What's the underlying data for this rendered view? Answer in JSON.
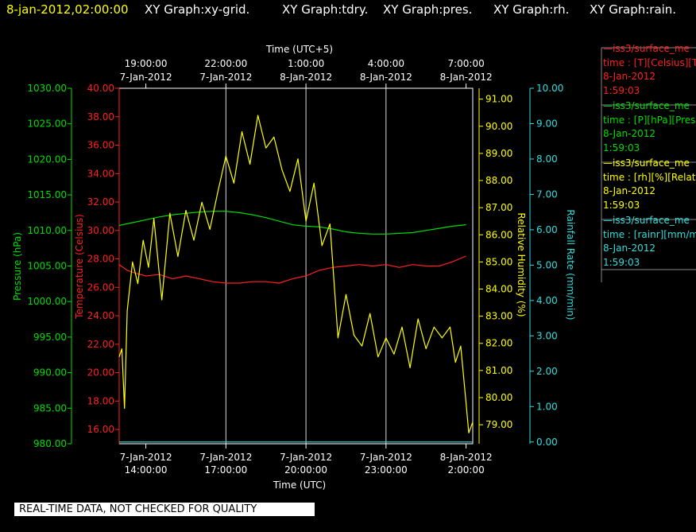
{
  "header": {
    "timestamp": "8-jan-2012,02:00:00",
    "graphs": [
      "XY Graph:xy-grid.",
      "XY Graph:tdry.",
      "XY Graph:pres.",
      "XY Graph:rh.",
      "XY Graph:rain."
    ]
  },
  "colors": {
    "pressure": "#00dd00",
    "temperature": "#ff2020",
    "humidity": "#ffff00",
    "rain": "#33dddd",
    "grid": "#ffffff",
    "header_timestamp": "#ffff00"
  },
  "legend": [
    {
      "name": "iss3/surface_me",
      "units": "time : [T][Celsius][T",
      "date": "8-Jan-2012",
      "time": "1:59:03",
      "color": "#ff2020"
    },
    {
      "name": "iss3/surface_me",
      "units": "time : [P][hPa][Pres",
      "date": "8-Jan-2012",
      "time": "1:59:03",
      "color": "#00dd00"
    },
    {
      "name": "iss3/surface_me",
      "units": "time : [rh][%][Relati",
      "date": "8-Jan-2012",
      "time": "1:59:03",
      "color": "#ffff00"
    },
    {
      "name": "iss3/surface_me",
      "units": "time : [rainr][mm/mi",
      "date": "8-Jan-2012",
      "time": "1:59:03",
      "color": "#33dddd"
    }
  ],
  "warning": "REAL-TIME DATA, NOT CHECKED FOR QUALITY",
  "chart_data": {
    "type": "line",
    "xlabel_bottom": "Time (UTC)",
    "xlabel_top": "Time (UTC+5)",
    "x_range_hours": [
      13.0,
      26.25
    ],
    "bottom_ticks": [
      {
        "h": 14,
        "date": "7-Jan-2012",
        "time": "14:00:00"
      },
      {
        "h": 17,
        "date": "7-Jan-2012",
        "time": "17:00:00"
      },
      {
        "h": 20,
        "date": "7-Jan-2012",
        "time": "20:00:00"
      },
      {
        "h": 23,
        "date": "7-Jan-2012",
        "time": "23:00:00"
      },
      {
        "h": 26,
        "date": "8-Jan-2012",
        "time": "2:00:00"
      }
    ],
    "top_ticks": [
      {
        "h": 14,
        "date": "7-Jan-2012",
        "time": "19:00:00"
      },
      {
        "h": 17,
        "date": "7-Jan-2012",
        "time": "22:00:00"
      },
      {
        "h": 20,
        "date": "8-Jan-2012",
        "time": "1:00:00"
      },
      {
        "h": 23,
        "date": "8-Jan-2012",
        "time": "4:00:00"
      },
      {
        "h": 26,
        "date": "8-Jan-2012",
        "time": "7:00:00"
      }
    ],
    "axes": {
      "pressure": {
        "label": "Pressure (hPa)",
        "range": [
          980,
          1030
        ],
        "ticks": [
          "980.00",
          "985.00",
          "990.00",
          "995.00",
          "1000.00",
          "1005.00",
          "1010.00",
          "1015.00",
          "1020.00",
          "1025.00",
          "1030.00"
        ]
      },
      "temperature": {
        "label": "Temperature (Celsius)",
        "range": [
          15.0,
          40.0
        ],
        "ticks": [
          "16.00",
          "18.00",
          "20.00",
          "22.00",
          "24.00",
          "26.00",
          "28.00",
          "30.00",
          "32.00",
          "34.00",
          "36.00",
          "38.00",
          "40.00"
        ]
      },
      "humidity": {
        "label": "Relative Humidity (%)",
        "range": [
          78.3,
          91.4
        ],
        "ticks": [
          "79.00",
          "80.00",
          "81.00",
          "82.00",
          "83.00",
          "84.00",
          "85.00",
          "86.00",
          "87.00",
          "88.00",
          "89.00",
          "90.00",
          "91.00"
        ]
      },
      "rain": {
        "label": "Rainfall Rate (mm/min)",
        "range": [
          -0.05,
          10.0
        ],
        "ticks": [
          "0.00",
          "1.00",
          "2.00",
          "3.00",
          "4.00",
          "5.00",
          "6.00",
          "7.00",
          "8.00",
          "9.00",
          "10.00"
        ]
      }
    },
    "series": [
      {
        "name": "iss3/surface_me [P]",
        "axis": "pressure",
        "x": [
          13.0,
          13.5,
          14.0,
          14.5,
          15.0,
          15.5,
          16.0,
          16.5,
          17.0,
          17.5,
          18.0,
          18.5,
          19.0,
          19.5,
          20.0,
          20.5,
          21.0,
          21.5,
          22.0,
          22.5,
          23.0,
          23.5,
          24.0,
          24.5,
          25.0,
          25.5,
          26.0
        ],
        "y": [
          1010.7,
          1011.1,
          1011.5,
          1011.9,
          1012.2,
          1012.4,
          1012.6,
          1012.7,
          1012.7,
          1012.5,
          1012.2,
          1011.8,
          1011.3,
          1010.8,
          1010.6,
          1010.5,
          1010.2,
          1009.8,
          1009.6,
          1009.5,
          1009.5,
          1009.6,
          1009.7,
          1010.0,
          1010.3,
          1010.6,
          1010.8
        ]
      },
      {
        "name": "iss3/surface_me [T]",
        "axis": "temperature",
        "x": [
          13.0,
          13.3,
          13.6,
          14.0,
          14.5,
          15.0,
          15.5,
          16.0,
          16.5,
          17.0,
          17.5,
          18.0,
          18.5,
          19.0,
          19.5,
          20.0,
          20.5,
          21.0,
          21.5,
          22.0,
          22.5,
          23.0,
          23.5,
          24.0,
          24.5,
          25.0,
          25.5,
          26.0
        ],
        "y": [
          27.6,
          27.2,
          27.0,
          26.8,
          26.9,
          26.6,
          26.8,
          26.6,
          26.4,
          26.3,
          26.3,
          26.4,
          26.4,
          26.3,
          26.6,
          26.8,
          27.2,
          27.4,
          27.5,
          27.6,
          27.5,
          27.6,
          27.4,
          27.6,
          27.5,
          27.5,
          27.8,
          28.2
        ]
      },
      {
        "name": "iss3/surface_me [rh]",
        "axis": "humidity",
        "x": [
          13.0,
          13.1,
          13.2,
          13.3,
          13.5,
          13.7,
          13.9,
          14.1,
          14.3,
          14.6,
          14.9,
          15.2,
          15.5,
          15.8,
          16.1,
          16.4,
          16.7,
          17.0,
          17.3,
          17.6,
          17.9,
          18.2,
          18.5,
          18.8,
          19.1,
          19.4,
          19.7,
          20.0,
          20.3,
          20.6,
          20.9,
          21.2,
          21.5,
          21.8,
          22.1,
          22.4,
          22.7,
          23.0,
          23.3,
          23.6,
          23.9,
          24.2,
          24.5,
          24.8,
          25.1,
          25.4,
          25.6,
          25.8,
          26.0,
          26.1,
          26.25
        ],
        "y": [
          81.5,
          81.8,
          79.6,
          83.2,
          85.0,
          84.2,
          85.8,
          84.8,
          86.6,
          83.6,
          86.8,
          85.2,
          86.9,
          85.8,
          87.2,
          86.2,
          87.6,
          88.9,
          87.9,
          89.8,
          88.6,
          90.4,
          89.2,
          89.6,
          88.4,
          87.6,
          88.8,
          86.5,
          87.9,
          85.6,
          86.4,
          82.2,
          83.8,
          82.3,
          81.9,
          83.1,
          81.5,
          82.2,
          81.6,
          82.6,
          81.1,
          82.9,
          81.8,
          82.6,
          82.2,
          82.6,
          81.3,
          81.9,
          79.8,
          78.7,
          79.1
        ]
      },
      {
        "name": "iss3/surface_me [rainr]",
        "axis": "rain",
        "x": [
          13.0,
          26.25
        ],
        "y": [
          0.0,
          0.0
        ]
      }
    ]
  }
}
